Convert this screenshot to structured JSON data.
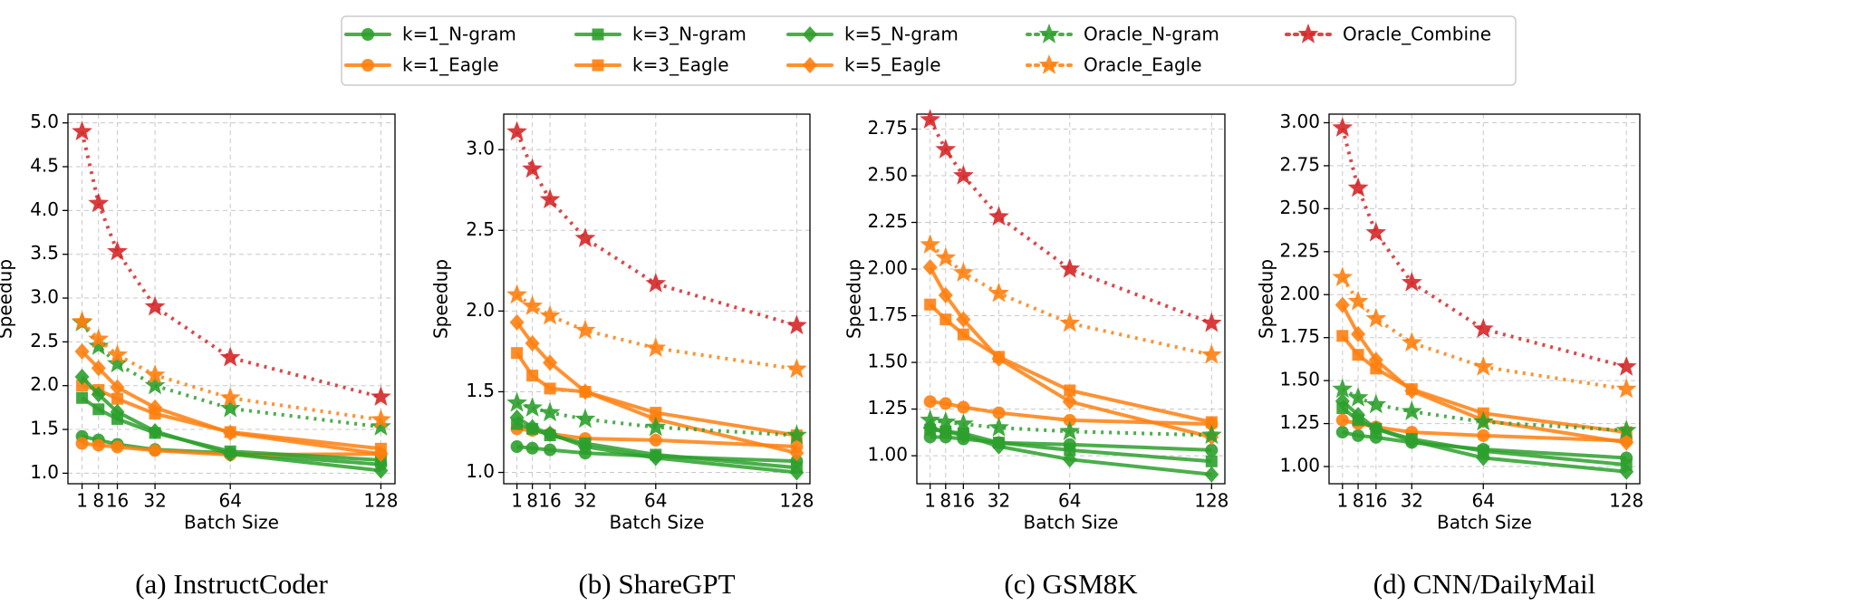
{
  "chart_data": [
    {
      "type": "line",
      "caption": "(a) InstructCoder",
      "xlabel": "Batch Size",
      "ylabel": "Speedup",
      "grid": true,
      "x": [
        1,
        8,
        16,
        32,
        64,
        128
      ],
      "xlim": [
        -5,
        134
      ],
      "xticks": [
        1,
        8,
        16,
        32,
        64,
        128
      ],
      "ylim": [
        0.88,
        5.1
      ],
      "yticks": [
        {
          "value": 1.0,
          "label": "1.0"
        },
        {
          "value": 1.5,
          "label": "1.5"
        },
        {
          "value": 2.0,
          "label": "2.0"
        },
        {
          "value": 2.5,
          "label": "2.5"
        },
        {
          "value": 3.0,
          "label": "3.0"
        },
        {
          "value": 3.5,
          "label": "3.5"
        },
        {
          "value": 4.0,
          "label": "4.0"
        },
        {
          "value": 4.5,
          "label": "4.5"
        },
        {
          "value": 5.0,
          "label": "5.0"
        }
      ],
      "series": [
        {
          "name": "k=1_N-gram",
          "color": "#2ca02c",
          "marker": "circle",
          "linestyle": "solid",
          "values": [
            1.42,
            1.38,
            1.33,
            1.27,
            1.23,
            1.1
          ]
        },
        {
          "name": "k=1_Eagle",
          "color": "#ff7f0e",
          "marker": "circle",
          "linestyle": "solid",
          "values": [
            1.34,
            1.32,
            1.3,
            1.26,
            1.21,
            1.22
          ]
        },
        {
          "name": "k=3_N-gram",
          "color": "#2ca02c",
          "marker": "square",
          "linestyle": "solid",
          "values": [
            1.86,
            1.73,
            1.62,
            1.46,
            1.25,
            1.15
          ]
        },
        {
          "name": "k=3_Eagle",
          "color": "#ff7f0e",
          "marker": "square",
          "linestyle": "solid",
          "values": [
            2.0,
            1.95,
            1.85,
            1.68,
            1.47,
            1.28
          ]
        },
        {
          "name": "k=5_N-gram",
          "color": "#2ca02c",
          "marker": "diamond",
          "linestyle": "solid",
          "values": [
            2.1,
            1.9,
            1.7,
            1.48,
            1.22,
            1.03
          ]
        },
        {
          "name": "k=5_Eagle",
          "color": "#ff7f0e",
          "marker": "diamond",
          "linestyle": "solid",
          "values": [
            2.39,
            2.2,
            1.98,
            1.75,
            1.46,
            1.22
          ]
        },
        {
          "name": "Oracle_N-gram",
          "color": "#2ca02c",
          "marker": "star",
          "linestyle": "dotted",
          "values": [
            2.72,
            2.45,
            2.25,
            2.0,
            1.74,
            1.53
          ]
        },
        {
          "name": "Oracle_Eagle",
          "color": "#ff7f0e",
          "marker": "star",
          "linestyle": "dotted",
          "values": [
            2.73,
            2.53,
            2.35,
            2.12,
            1.86,
            1.61
          ]
        },
        {
          "name": "Oracle_Combine",
          "color": "#d62728",
          "marker": "star",
          "linestyle": "dotted",
          "values": [
            4.9,
            4.08,
            3.53,
            2.9,
            2.32,
            1.87
          ]
        }
      ]
    },
    {
      "type": "line",
      "caption": "(b) ShareGPT",
      "xlabel": "Batch Size",
      "ylabel": "Speedup",
      "grid": true,
      "x": [
        1,
        8,
        16,
        32,
        64,
        128
      ],
      "xlim": [
        -5,
        134
      ],
      "xticks": [
        1,
        8,
        16,
        32,
        64,
        128
      ],
      "ylim": [
        0.93,
        3.22
      ],
      "yticks": [
        {
          "value": 1.0,
          "label": "1.0"
        },
        {
          "value": 1.5,
          "label": "1.5"
        },
        {
          "value": 2.0,
          "label": "2.0"
        },
        {
          "value": 2.5,
          "label": "2.5"
        },
        {
          "value": 3.0,
          "label": "3.0"
        }
      ],
      "series": [
        {
          "name": "k=1_N-gram",
          "color": "#2ca02c",
          "marker": "circle",
          "linestyle": "solid",
          "values": [
            1.16,
            1.15,
            1.14,
            1.12,
            1.1,
            1.07
          ]
        },
        {
          "name": "k=1_Eagle",
          "color": "#ff7f0e",
          "marker": "circle",
          "linestyle": "solid",
          "values": [
            1.27,
            1.26,
            1.24,
            1.21,
            1.2,
            1.16
          ]
        },
        {
          "name": "k=3_N-gram",
          "color": "#2ca02c",
          "marker": "square",
          "linestyle": "solid",
          "values": [
            1.3,
            1.27,
            1.23,
            1.18,
            1.11,
            1.03
          ]
        },
        {
          "name": "k=3_Eagle",
          "color": "#ff7f0e",
          "marker": "square",
          "linestyle": "solid",
          "values": [
            1.74,
            1.6,
            1.52,
            1.5,
            1.37,
            1.23
          ]
        },
        {
          "name": "k=5_N-gram",
          "color": "#2ca02c",
          "marker": "diamond",
          "linestyle": "solid",
          "values": [
            1.34,
            1.28,
            1.24,
            1.16,
            1.09,
            1.0
          ]
        },
        {
          "name": "k=5_Eagle",
          "color": "#ff7f0e",
          "marker": "diamond",
          "linestyle": "solid",
          "values": [
            1.93,
            1.8,
            1.68,
            1.5,
            1.33,
            1.12
          ]
        },
        {
          "name": "Oracle_N-gram",
          "color": "#2ca02c",
          "marker": "star",
          "linestyle": "dotted",
          "values": [
            1.43,
            1.4,
            1.37,
            1.33,
            1.28,
            1.23
          ]
        },
        {
          "name": "Oracle_Eagle",
          "color": "#ff7f0e",
          "marker": "star",
          "linestyle": "dotted",
          "values": [
            2.1,
            2.03,
            1.97,
            1.88,
            1.77,
            1.64
          ]
        },
        {
          "name": "Oracle_Combine",
          "color": "#d62728",
          "marker": "star",
          "linestyle": "dotted",
          "values": [
            3.11,
            2.88,
            2.69,
            2.45,
            2.17,
            1.91
          ]
        }
      ]
    },
    {
      "type": "line",
      "caption": "(c) GSM8K",
      "xlabel": "Batch Size",
      "ylabel": "Speedup",
      "grid": true,
      "x": [
        1,
        8,
        16,
        32,
        64,
        128
      ],
      "xlim": [
        -5,
        134
      ],
      "xticks": [
        1,
        8,
        16,
        32,
        64,
        128
      ],
      "ylim": [
        0.85,
        2.83
      ],
      "yticks": [
        {
          "value": 1.0,
          "label": "1.00"
        },
        {
          "value": 1.25,
          "label": "1.25"
        },
        {
          "value": 1.5,
          "label": "1.50"
        },
        {
          "value": 1.75,
          "label": "1.75"
        },
        {
          "value": 2.0,
          "label": "2.00"
        },
        {
          "value": 2.25,
          "label": "2.25"
        },
        {
          "value": 2.5,
          "label": "2.50"
        },
        {
          "value": 2.75,
          "label": "2.75"
        }
      ],
      "series": [
        {
          "name": "k=1_N-gram",
          "color": "#2ca02c",
          "marker": "circle",
          "linestyle": "solid",
          "values": [
            1.1,
            1.1,
            1.09,
            1.07,
            1.06,
            1.03
          ]
        },
        {
          "name": "k=1_Eagle",
          "color": "#ff7f0e",
          "marker": "circle",
          "linestyle": "solid",
          "values": [
            1.29,
            1.28,
            1.26,
            1.23,
            1.19,
            1.17
          ]
        },
        {
          "name": "k=3_N-gram",
          "color": "#2ca02c",
          "marker": "square",
          "linestyle": "solid",
          "values": [
            1.14,
            1.13,
            1.12,
            1.07,
            1.03,
            0.97
          ]
        },
        {
          "name": "k=3_Eagle",
          "color": "#ff7f0e",
          "marker": "square",
          "linestyle": "solid",
          "values": [
            1.81,
            1.73,
            1.65,
            1.53,
            1.35,
            1.18
          ]
        },
        {
          "name": "k=5_N-gram",
          "color": "#2ca02c",
          "marker": "diamond",
          "linestyle": "solid",
          "values": [
            1.15,
            1.13,
            1.11,
            1.05,
            0.98,
            0.9
          ]
        },
        {
          "name": "k=5_Eagle",
          "color": "#ff7f0e",
          "marker": "diamond",
          "linestyle": "solid",
          "values": [
            2.01,
            1.86,
            1.73,
            1.52,
            1.29,
            1.1
          ]
        },
        {
          "name": "Oracle_N-gram",
          "color": "#2ca02c",
          "marker": "star",
          "linestyle": "dotted",
          "values": [
            1.19,
            1.18,
            1.17,
            1.15,
            1.13,
            1.11
          ]
        },
        {
          "name": "Oracle_Eagle",
          "color": "#ff7f0e",
          "marker": "star",
          "linestyle": "dotted",
          "values": [
            2.13,
            2.06,
            1.98,
            1.87,
            1.71,
            1.54
          ]
        },
        {
          "name": "Oracle_Combine",
          "color": "#d62728",
          "marker": "star",
          "linestyle": "dotted",
          "values": [
            2.8,
            2.64,
            2.5,
            2.28,
            2.0,
            1.71
          ]
        }
      ]
    },
    {
      "type": "line",
      "caption": "(d) CNN/DailyMail",
      "xlabel": "Batch Size",
      "ylabel": "Speedup",
      "grid": true,
      "x": [
        1,
        8,
        16,
        32,
        64,
        128
      ],
      "xlim": [
        -5,
        134
      ],
      "xticks": [
        1,
        8,
        16,
        32,
        64,
        128
      ],
      "ylim": [
        0.9,
        3.05
      ],
      "yticks": [
        {
          "value": 1.0,
          "label": "1.00"
        },
        {
          "value": 1.25,
          "label": "1.25"
        },
        {
          "value": 1.5,
          "label": "1.50"
        },
        {
          "value": 1.75,
          "label": "1.75"
        },
        {
          "value": 2.0,
          "label": "2.00"
        },
        {
          "value": 2.25,
          "label": "2.25"
        },
        {
          "value": 2.5,
          "label": "2.50"
        },
        {
          "value": 2.75,
          "label": "2.75"
        },
        {
          "value": 3.0,
          "label": "3.00"
        }
      ],
      "series": [
        {
          "name": "k=1_N-gram",
          "color": "#2ca02c",
          "marker": "circle",
          "linestyle": "solid",
          "values": [
            1.2,
            1.18,
            1.17,
            1.14,
            1.1,
            1.05
          ]
        },
        {
          "name": "k=1_Eagle",
          "color": "#ff7f0e",
          "marker": "circle",
          "linestyle": "solid",
          "values": [
            1.27,
            1.25,
            1.23,
            1.2,
            1.18,
            1.15
          ]
        },
        {
          "name": "k=3_N-gram",
          "color": "#2ca02c",
          "marker": "square",
          "linestyle": "solid",
          "values": [
            1.34,
            1.27,
            1.22,
            1.16,
            1.09,
            1.01
          ]
        },
        {
          "name": "k=3_Eagle",
          "color": "#ff7f0e",
          "marker": "square",
          "linestyle": "solid",
          "values": [
            1.76,
            1.65,
            1.57,
            1.45,
            1.31,
            1.2
          ]
        },
        {
          "name": "k=5_N-gram",
          "color": "#2ca02c",
          "marker": "diamond",
          "linestyle": "solid",
          "values": [
            1.38,
            1.3,
            1.22,
            1.15,
            1.05,
            0.97
          ]
        },
        {
          "name": "k=5_Eagle",
          "color": "#ff7f0e",
          "marker": "diamond",
          "linestyle": "solid",
          "values": [
            1.94,
            1.77,
            1.62,
            1.44,
            1.27,
            1.14
          ]
        },
        {
          "name": "Oracle_N-gram",
          "color": "#2ca02c",
          "marker": "star",
          "linestyle": "dotted",
          "values": [
            1.45,
            1.4,
            1.36,
            1.32,
            1.26,
            1.21
          ]
        },
        {
          "name": "Oracle_Eagle",
          "color": "#ff7f0e",
          "marker": "star",
          "linestyle": "dotted",
          "values": [
            2.1,
            1.96,
            1.86,
            1.72,
            1.58,
            1.45
          ]
        },
        {
          "name": "Oracle_Combine",
          "color": "#d62728",
          "marker": "star",
          "linestyle": "dotted",
          "values": [
            2.97,
            2.62,
            2.36,
            2.07,
            1.8,
            1.58
          ]
        }
      ]
    }
  ]
}
